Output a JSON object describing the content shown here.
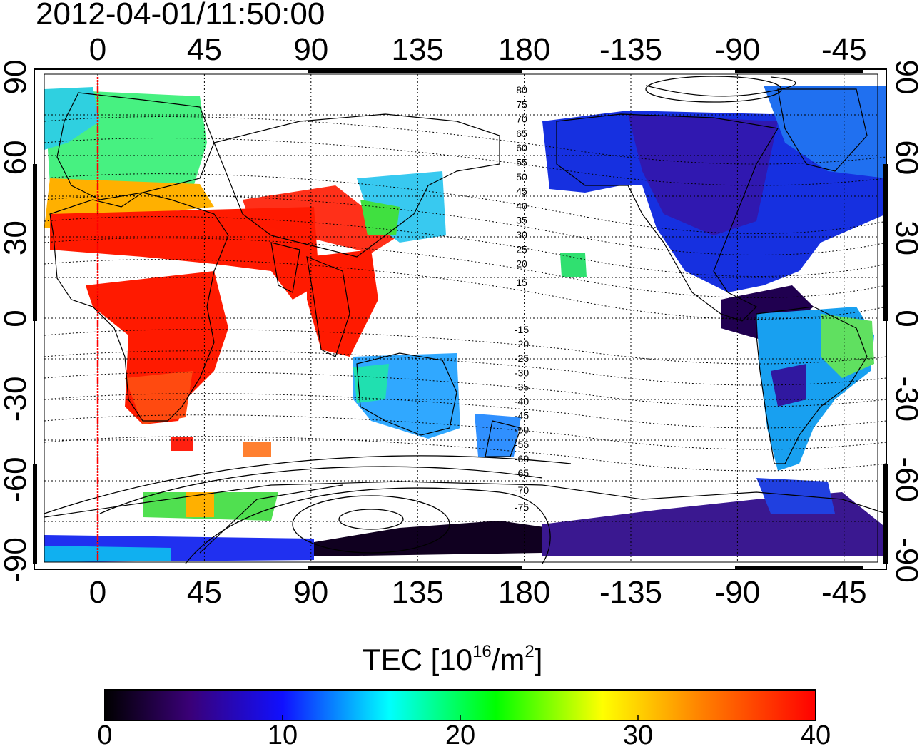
{
  "title": "2012-04-01/11:50:00",
  "map": {
    "projection": "equirectangular",
    "central_meridian": 180,
    "lon_ticks_top": [
      "0",
      "45",
      "90",
      "135",
      "180",
      "-135",
      "-90",
      "-45"
    ],
    "lon_ticks_bottom": [
      "0",
      "45",
      "90",
      "135",
      "180",
      "-135",
      "-90",
      "-45"
    ],
    "lat_ticks_left": [
      "90",
      "60",
      "30",
      "0",
      "-30",
      "-60",
      "-90"
    ],
    "lat_ticks_right": [
      "90",
      "60",
      "30",
      "0",
      "-30",
      "-60",
      "-90"
    ],
    "magnetic_latitude_labels_north": [
      "80",
      "75",
      "70",
      "65",
      "60",
      "55",
      "50",
      "45",
      "40",
      "35",
      "30",
      "25",
      "20",
      "15"
    ],
    "magnetic_latitude_labels_south": [
      "-15",
      "-20",
      "-25",
      "-30",
      "-35",
      "-40",
      "-45",
      "-50",
      "-55",
      "-60",
      "-65",
      "-70",
      "-75"
    ],
    "terminator_color": "#ff0000",
    "grid": "dotted"
  },
  "colorbar": {
    "title_main": "TEC  [10",
    "title_sup1": "16",
    "title_mid": "/m",
    "title_sup2": "2",
    "title_end": "]",
    "ticks": [
      "0",
      "10",
      "20",
      "30",
      "40"
    ],
    "range": [
      0,
      40
    ],
    "colors": [
      "#000000",
      "#3a0078",
      "#1010ff",
      "#00ffff",
      "#00ff00",
      "#ffff00",
      "#ff8000",
      "#ff0000"
    ]
  }
}
